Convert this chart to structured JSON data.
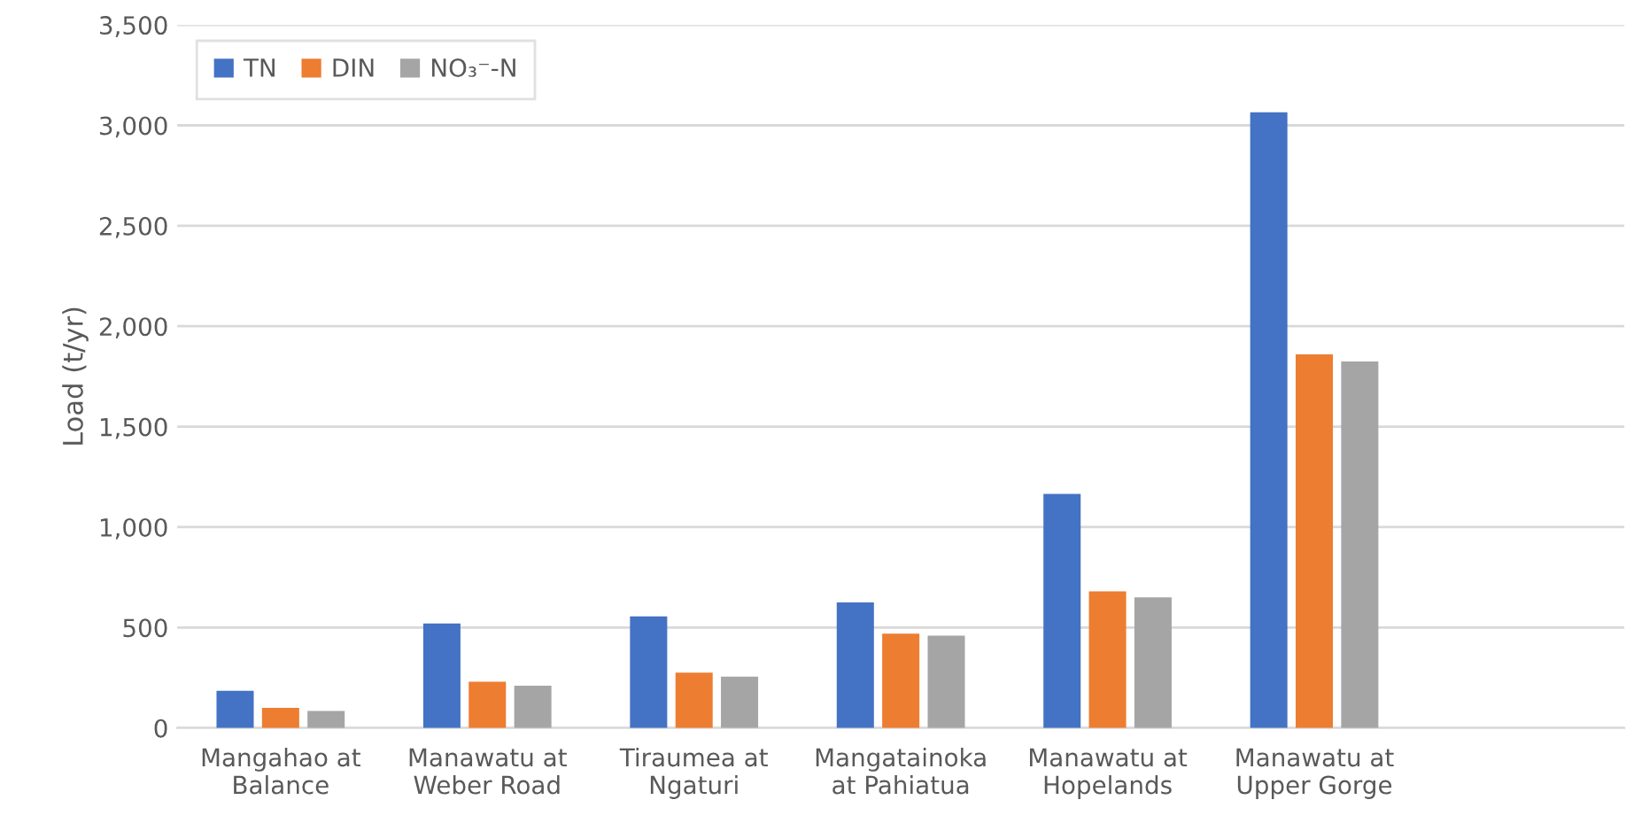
{
  "chart_data": {
    "type": "bar",
    "ylabel": "Load (t/yr)",
    "categories": [
      "Mangahao at\nBalance",
      "Manawatu at\nWeber Road",
      "Tiraumea at\nNgaturi",
      "Mangatainoka\nat Pahiatua",
      "Manawatu at\nHopelands",
      "Manawatu at\nUpper Gorge",
      null
    ],
    "series": [
      {
        "name": "TN",
        "color": "#4472c4",
        "values": [
          185,
          520,
          555,
          625,
          1165,
          3065,
          null
        ]
      },
      {
        "name": "DIN",
        "color": "#ed7d31",
        "values": [
          100,
          230,
          275,
          470,
          680,
          1860,
          null
        ]
      },
      {
        "name": "NO₃⁻-N",
        "color": "#a5a5a5",
        "values": [
          85,
          210,
          255,
          460,
          650,
          1825,
          null
        ]
      }
    ],
    "ylim": [
      0,
      3500
    ],
    "yticks": [
      {
        "value": 0,
        "label": "0"
      },
      {
        "value": 500,
        "label": "500"
      },
      {
        "value": 1000,
        "label": "1,000"
      },
      {
        "value": 1500,
        "label": "1,500"
      },
      {
        "value": 2000,
        "label": "2,000"
      },
      {
        "value": 2500,
        "label": "2,500"
      },
      {
        "value": 3000,
        "label": "3,000"
      },
      {
        "value": 3500,
        "label": "3,500"
      }
    ],
    "grid": "y",
    "legend": "top left"
  }
}
